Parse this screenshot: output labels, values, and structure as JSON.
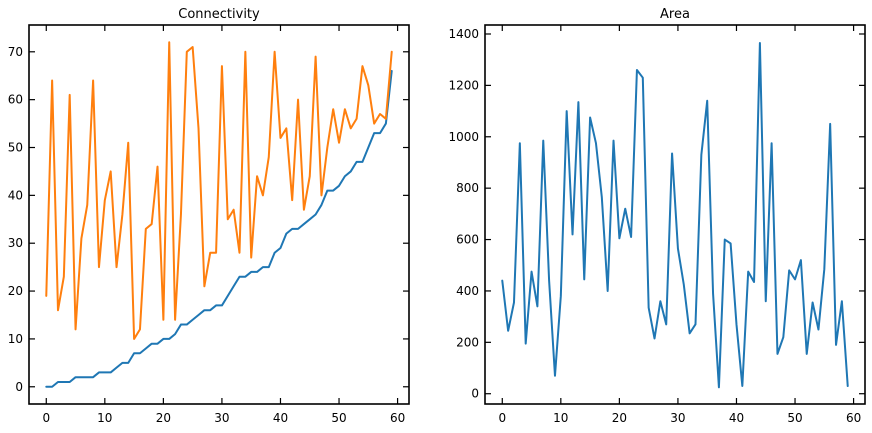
{
  "chart_data": [
    {
      "type": "line",
      "title": "Connectivity",
      "xlabel": "",
      "ylabel": "",
      "xlim": [
        -2.95,
        61.95
      ],
      "ylim": [
        -3.6,
        75.6
      ],
      "xticks": [
        0,
        10,
        20,
        30,
        40,
        50,
        60
      ],
      "yticks": [
        0,
        10,
        20,
        30,
        40,
        50,
        60,
        70
      ],
      "grid": false,
      "x": [
        0,
        1,
        2,
        3,
        4,
        5,
        6,
        7,
        8,
        9,
        10,
        11,
        12,
        13,
        14,
        15,
        16,
        17,
        18,
        19,
        20,
        21,
        22,
        23,
        24,
        25,
        26,
        27,
        28,
        29,
        30,
        31,
        32,
        33,
        34,
        35,
        36,
        37,
        38,
        39,
        40,
        41,
        42,
        43,
        44,
        45,
        46,
        47,
        48,
        49,
        50,
        51,
        52,
        53,
        54,
        55,
        56,
        57,
        58,
        59
      ],
      "series": [
        {
          "color": "#1f77b4",
          "values": [
            0,
            0,
            1,
            1,
            1,
            2,
            2,
            2,
            2,
            3,
            3,
            3,
            4,
            5,
            5,
            7,
            7,
            8,
            9,
            9,
            10,
            10,
            11,
            13,
            13,
            14,
            15,
            16,
            16,
            17,
            17,
            19,
            21,
            23,
            23,
            24,
            24,
            25,
            25,
            28,
            29,
            32,
            33,
            33,
            34,
            35,
            36,
            38,
            41,
            41,
            42,
            44,
            45,
            47,
            47,
            50,
            53,
            53,
            55,
            66
          ]
        },
        {
          "color": "#ff7f0e",
          "values": [
            19,
            64,
            16,
            23,
            61,
            12,
            31,
            38,
            64,
            25,
            39,
            45,
            25,
            36,
            51,
            10,
            12,
            33,
            34,
            46,
            14,
            72,
            14,
            36,
            70,
            71,
            54,
            21,
            28,
            28,
            67,
            35,
            37,
            28,
            70,
            27,
            44,
            40,
            48,
            70,
            52,
            54,
            39,
            60,
            37,
            44,
            69,
            40,
            50,
            58,
            51,
            58,
            54,
            56,
            67,
            63,
            55,
            57,
            56,
            70
          ]
        }
      ]
    },
    {
      "type": "line",
      "title": "Area",
      "xlabel": "",
      "ylabel": "",
      "xlim": [
        -2.95,
        61.95
      ],
      "ylim": [
        -40,
        1435
      ],
      "xticks": [
        0,
        10,
        20,
        30,
        40,
        50,
        60
      ],
      "yticks": [
        0,
        200,
        400,
        600,
        800,
        1000,
        1200,
        1400
      ],
      "grid": false,
      "x": [
        0,
        1,
        2,
        3,
        4,
        5,
        6,
        7,
        8,
        9,
        10,
        11,
        12,
        13,
        14,
        15,
        16,
        17,
        18,
        19,
        20,
        21,
        22,
        23,
        24,
        25,
        26,
        27,
        28,
        29,
        30,
        31,
        32,
        33,
        34,
        35,
        36,
        37,
        38,
        39,
        40,
        41,
        42,
        43,
        44,
        45,
        46,
        47,
        48,
        49,
        50,
        51,
        52,
        53,
        54,
        55,
        56,
        57,
        58,
        59
      ],
      "series": [
        {
          "color": "#1f77b4",
          "values": [
            440,
            245,
            355,
            975,
            195,
            475,
            340,
            985,
            440,
            70,
            380,
            1100,
            620,
            1135,
            445,
            1075,
            975,
            765,
            400,
            985,
            605,
            720,
            610,
            1260,
            1230,
            335,
            215,
            360,
            270,
            935,
            565,
            425,
            235,
            270,
            930,
            1140,
            390,
            25,
            600,
            585,
            270,
            30,
            475,
            435,
            1365,
            360,
            975,
            155,
            220,
            480,
            445,
            520,
            155,
            355,
            250,
            485,
            1050,
            190,
            360,
            30
          ]
        }
      ]
    }
  ]
}
